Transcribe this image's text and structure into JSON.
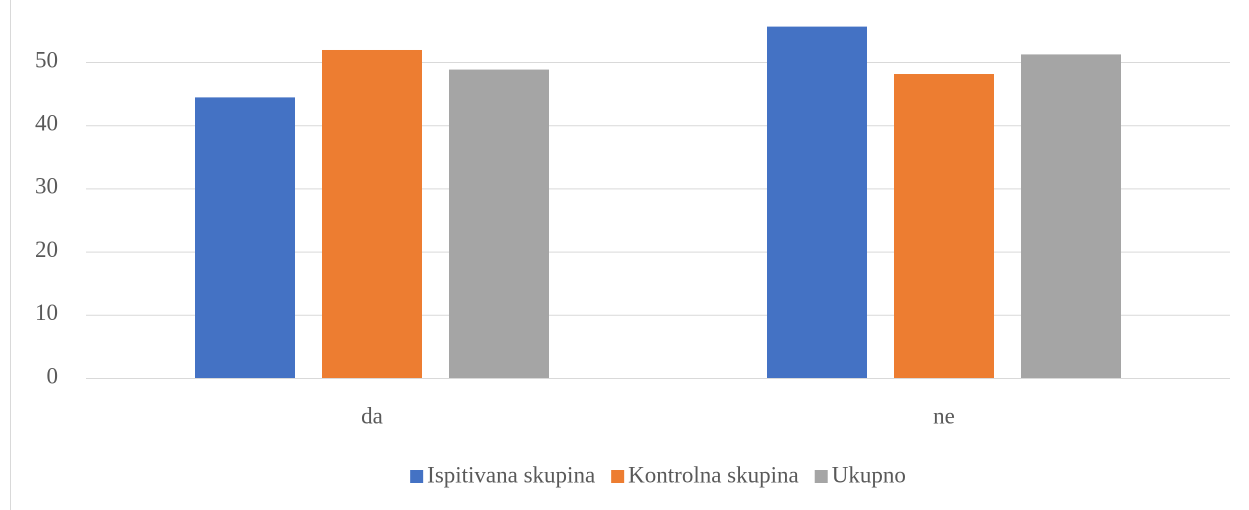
{
  "chart_data": {
    "type": "bar",
    "categories": [
      "da",
      "ne"
    ],
    "series": [
      {
        "name": "Ispitivana skupina",
        "color": "#4472c4",
        "values": [
          44.4,
          55.6
        ]
      },
      {
        "name": "Kontrolna skupina",
        "color": "#ed7d31",
        "values": [
          51.9,
          48.1
        ]
      },
      {
        "name": "Ukupno",
        "color": "#a5a5a5",
        "values": [
          48.8,
          51.2
        ]
      }
    ],
    "ylim": [
      0,
      57
    ],
    "yticks": [
      0,
      10,
      20,
      30,
      40,
      50
    ],
    "grid": true,
    "legend": "bottom"
  }
}
